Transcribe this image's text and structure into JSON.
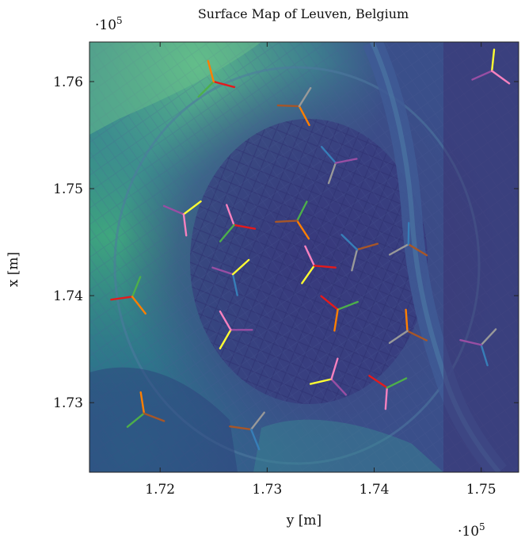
{
  "chart_data": {
    "type": "scatter",
    "title": "Surface Map of Leuven, Belgium",
    "xlabel": "y [m]",
    "ylabel": "x [m]",
    "x_exponent_label": "·10^5",
    "y_exponent_label": "·10^5",
    "x_exponent_base": "·10",
    "x_exponent_power": "5",
    "y_exponent_base": "·10",
    "y_exponent_power": "5",
    "xlim": [
      1.7134,
      1.7535
    ],
    "ylim": [
      1.7235,
      1.7637
    ],
    "xticks": [
      1.72,
      1.73,
      1.74,
      1.75
    ],
    "xticklabels": [
      "1.72",
      "1.73",
      "1.74",
      "1.75"
    ],
    "yticks": [
      1.73,
      1.74,
      1.75,
      1.76
    ],
    "yticklabels": [
      "1.73",
      "1.74",
      "1.75",
      "1.76"
    ],
    "grid": false,
    "background": "surface elevation heatmap (viridis colormap)",
    "marker": "three-armed wind turbine glyph",
    "arm_colors": [
      "#e41a1c",
      "#377eb8",
      "#4daf4a",
      "#984ea3",
      "#ff7f00",
      "#ffff33",
      "#a65628",
      "#f781bf",
      "#999999"
    ],
    "colormap": [
      "#440154",
      "#3b528b",
      "#21908d",
      "#5dc963",
      "#fde725"
    ],
    "points": [
      {
        "x": 1.725,
        "y": 1.76
      },
      {
        "x": 1.733,
        "y": 1.7577
      },
      {
        "x": 1.7364,
        "y": 1.7524
      },
      {
        "x": 1.751,
        "y": 1.761
      },
      {
        "x": 1.7222,
        "y": 1.7476
      },
      {
        "x": 1.7269,
        "y": 1.7466
      },
      {
        "x": 1.7328,
        "y": 1.747
      },
      {
        "x": 1.7384,
        "y": 1.7443
      },
      {
        "x": 1.7432,
        "y": 1.7448
      },
      {
        "x": 1.7268,
        "y": 1.742
      },
      {
        "x": 1.7344,
        "y": 1.7428
      },
      {
        "x": 1.7174,
        "y": 1.7399
      },
      {
        "x": 1.7366,
        "y": 1.7387
      },
      {
        "x": 1.7431,
        "y": 1.7367
      },
      {
        "x": 1.75,
        "y": 1.7354
      },
      {
        "x": 1.7266,
        "y": 1.7368
      },
      {
        "x": 1.736,
        "y": 1.7322
      },
      {
        "x": 1.7412,
        "y": 1.7314
      },
      {
        "x": 1.7185,
        "y": 1.729
      },
      {
        "x": 1.7285,
        "y": 1.7275
      }
    ]
  }
}
